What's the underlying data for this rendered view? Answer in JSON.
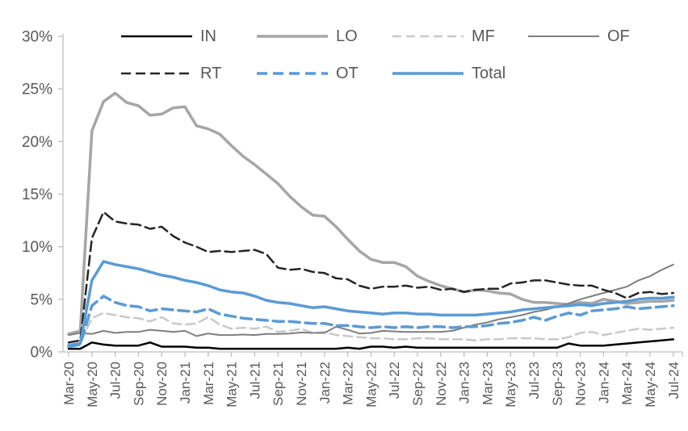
{
  "chart_data": {
    "type": "line",
    "title": "",
    "xlabel": "",
    "ylabel": "",
    "ylim": [
      0,
      30
    ],
    "y_tick_labels": [
      "0%",
      "5%",
      "10%",
      "15%",
      "20%",
      "25%",
      "30%"
    ],
    "y_tick_step": 5,
    "grid": false,
    "legend_position": "top",
    "x": [
      "Mar-20",
      "Apr-20",
      "May-20",
      "Jun-20",
      "Jul-20",
      "Aug-20",
      "Sep-20",
      "Oct-20",
      "Nov-20",
      "Dec-20",
      "Jan-21",
      "Feb-21",
      "Mar-21",
      "Apr-21",
      "May-21",
      "Jun-21",
      "Jul-21",
      "Aug-21",
      "Sep-21",
      "Oct-21",
      "Nov-21",
      "Dec-21",
      "Jan-22",
      "Feb-22",
      "Mar-22",
      "Apr-22",
      "May-22",
      "Jun-22",
      "Jul-22",
      "Aug-22",
      "Sep-22",
      "Oct-22",
      "Nov-22",
      "Dec-22",
      "Jan-23",
      "Feb-23",
      "Mar-23",
      "Apr-23",
      "May-23",
      "Jun-23",
      "Jul-23",
      "Aug-23",
      "Sep-23",
      "Oct-23",
      "Nov-23",
      "Dec-23",
      "Jan-24",
      "Feb-24",
      "Mar-24",
      "Apr-24",
      "May-24",
      "Jun-24",
      "Jul-24"
    ],
    "x_tick_labels": [
      "Mar-20",
      "May-20",
      "Jul-20",
      "Sep-20",
      "Nov-20",
      "Jan-21",
      "Mar-21",
      "May-21",
      "Jul-21",
      "Sep-21",
      "Nov-21",
      "Jan-22",
      "Mar-22",
      "May-22",
      "Jul-22",
      "Sep-22",
      "Nov-22",
      "Jan-23",
      "Mar-23",
      "May-23",
      "Jul-23",
      "Sep-23",
      "Nov-23",
      "Jan-24",
      "Mar-24",
      "May-24",
      "Jul-24"
    ],
    "x_label_every": 2,
    "axis_color": "#bfbfbf",
    "text_color": "#595959",
    "series": [
      {
        "name": "IN",
        "color": "#000000",
        "dash": null,
        "width": 2.5,
        "values": [
          0.3,
          0.3,
          0.9,
          0.7,
          0.6,
          0.6,
          0.6,
          0.9,
          0.5,
          0.5,
          0.5,
          0.4,
          0.4,
          0.3,
          0.3,
          0.3,
          0.3,
          0.3,
          0.3,
          0.3,
          0.3,
          0.3,
          0.3,
          0.3,
          0.4,
          0.3,
          0.5,
          0.5,
          0.4,
          0.5,
          0.4,
          0.4,
          0.4,
          0.4,
          0.4,
          0.4,
          0.4,
          0.4,
          0.4,
          0.4,
          0.4,
          0.4,
          0.4,
          0.8,
          0.6,
          0.6,
          0.6,
          0.7,
          0.8,
          0.9,
          1.0,
          1.1,
          1.2
        ]
      },
      {
        "name": "LO",
        "color": "#a6a6a6",
        "dash": null,
        "width": 3.5,
        "values": [
          1.7,
          2.0,
          21.0,
          23.8,
          24.6,
          23.7,
          23.4,
          22.5,
          22.6,
          23.2,
          23.3,
          21.5,
          21.2,
          20.7,
          19.6,
          18.6,
          17.8,
          16.9,
          16.0,
          14.8,
          13.8,
          13.0,
          12.9,
          11.9,
          10.7,
          9.6,
          8.8,
          8.5,
          8.5,
          8.1,
          7.2,
          6.7,
          6.3,
          6.0,
          5.7,
          5.9,
          5.8,
          5.6,
          5.5,
          5.0,
          4.7,
          4.7,
          4.6,
          4.5,
          4.7,
          4.6,
          5.0,
          4.8,
          4.6,
          4.7,
          4.8,
          4.8,
          4.9
        ]
      },
      {
        "name": "MF",
        "color": "#c9c9c9",
        "dash": "11 6",
        "width": 2.5,
        "values": [
          0.7,
          0.9,
          3.2,
          3.7,
          3.5,
          3.3,
          3.2,
          2.9,
          3.3,
          2.7,
          2.6,
          2.7,
          3.3,
          2.6,
          2.2,
          2.3,
          2.2,
          2.4,
          1.9,
          2.0,
          2.2,
          1.8,
          1.9,
          1.6,
          1.5,
          1.4,
          1.3,
          1.3,
          1.2,
          1.2,
          1.3,
          1.3,
          1.2,
          1.2,
          1.2,
          1.1,
          1.2,
          1.2,
          1.3,
          1.3,
          1.3,
          1.2,
          1.2,
          1.4,
          1.8,
          1.9,
          1.6,
          1.8,
          2.0,
          2.2,
          2.1,
          2.2,
          2.3
        ]
      },
      {
        "name": "OF",
        "color": "#7f7f7f",
        "dash": null,
        "width": 2,
        "values": [
          1.6,
          1.8,
          1.7,
          2.0,
          1.8,
          1.9,
          1.9,
          2.1,
          2.0,
          1.9,
          2.0,
          1.5,
          1.75,
          1.6,
          1.6,
          1.65,
          1.6,
          1.7,
          1.7,
          1.75,
          1.85,
          1.8,
          1.8,
          2.4,
          2.1,
          1.75,
          1.8,
          2.0,
          1.95,
          1.9,
          1.9,
          1.9,
          1.9,
          2.0,
          2.3,
          2.6,
          2.8,
          3.1,
          3.3,
          3.5,
          3.8,
          4.0,
          4.3,
          4.6,
          5.0,
          5.3,
          5.6,
          5.9,
          6.2,
          6.8,
          7.2,
          7.8,
          8.3
        ]
      },
      {
        "name": "RT",
        "color": "#262626",
        "dash": "12 6",
        "width": 2.5,
        "values": [
          0.9,
          1.1,
          10.8,
          13.3,
          12.4,
          12.2,
          12.1,
          11.7,
          11.9,
          11.0,
          10.4,
          10.0,
          9.5,
          9.6,
          9.5,
          9.6,
          9.7,
          9.3,
          8.0,
          7.8,
          7.9,
          7.6,
          7.5,
          7.0,
          6.9,
          6.3,
          6.0,
          6.2,
          6.2,
          6.3,
          6.1,
          6.2,
          5.9,
          6.0,
          5.7,
          5.9,
          6.0,
          6.0,
          6.5,
          6.6,
          6.8,
          6.8,
          6.6,
          6.4,
          6.3,
          6.3,
          5.9,
          5.6,
          5.1,
          5.6,
          5.7,
          5.5,
          5.6
        ]
      },
      {
        "name": "OT",
        "color": "#5b9bd5",
        "dash": "13 7",
        "width": 3.5,
        "values": [
          0.5,
          0.7,
          4.4,
          5.3,
          4.7,
          4.4,
          4.3,
          3.9,
          4.1,
          4.0,
          3.9,
          3.8,
          4.1,
          3.6,
          3.4,
          3.2,
          3.1,
          3.0,
          2.9,
          2.9,
          2.8,
          2.7,
          2.7,
          2.5,
          2.5,
          2.4,
          2.3,
          2.4,
          2.3,
          2.4,
          2.3,
          2.4,
          2.4,
          2.3,
          2.4,
          2.4,
          2.5,
          2.7,
          2.8,
          3.0,
          3.3,
          3.0,
          3.4,
          3.7,
          3.5,
          3.9,
          4.0,
          4.1,
          4.3,
          4.1,
          4.2,
          4.3,
          4.4
        ]
      },
      {
        "name": "Total",
        "color": "#5b9bd5",
        "dash": null,
        "width": 3.5,
        "values": [
          0.6,
          0.8,
          6.8,
          8.6,
          8.3,
          8.1,
          7.9,
          7.6,
          7.3,
          7.1,
          6.8,
          6.6,
          6.3,
          5.9,
          5.7,
          5.6,
          5.3,
          4.9,
          4.7,
          4.6,
          4.4,
          4.2,
          4.3,
          4.1,
          3.9,
          3.8,
          3.7,
          3.6,
          3.7,
          3.7,
          3.6,
          3.6,
          3.5,
          3.5,
          3.5,
          3.5,
          3.6,
          3.7,
          3.8,
          4.0,
          4.1,
          4.2,
          4.3,
          4.4,
          4.5,
          4.4,
          4.6,
          4.7,
          4.8,
          5.0,
          5.1,
          5.1,
          5.2
        ]
      }
    ],
    "legend_rows": [
      [
        "IN",
        "LO",
        "MF",
        "OF"
      ],
      [
        "RT",
        "OT",
        "Total"
      ]
    ]
  }
}
